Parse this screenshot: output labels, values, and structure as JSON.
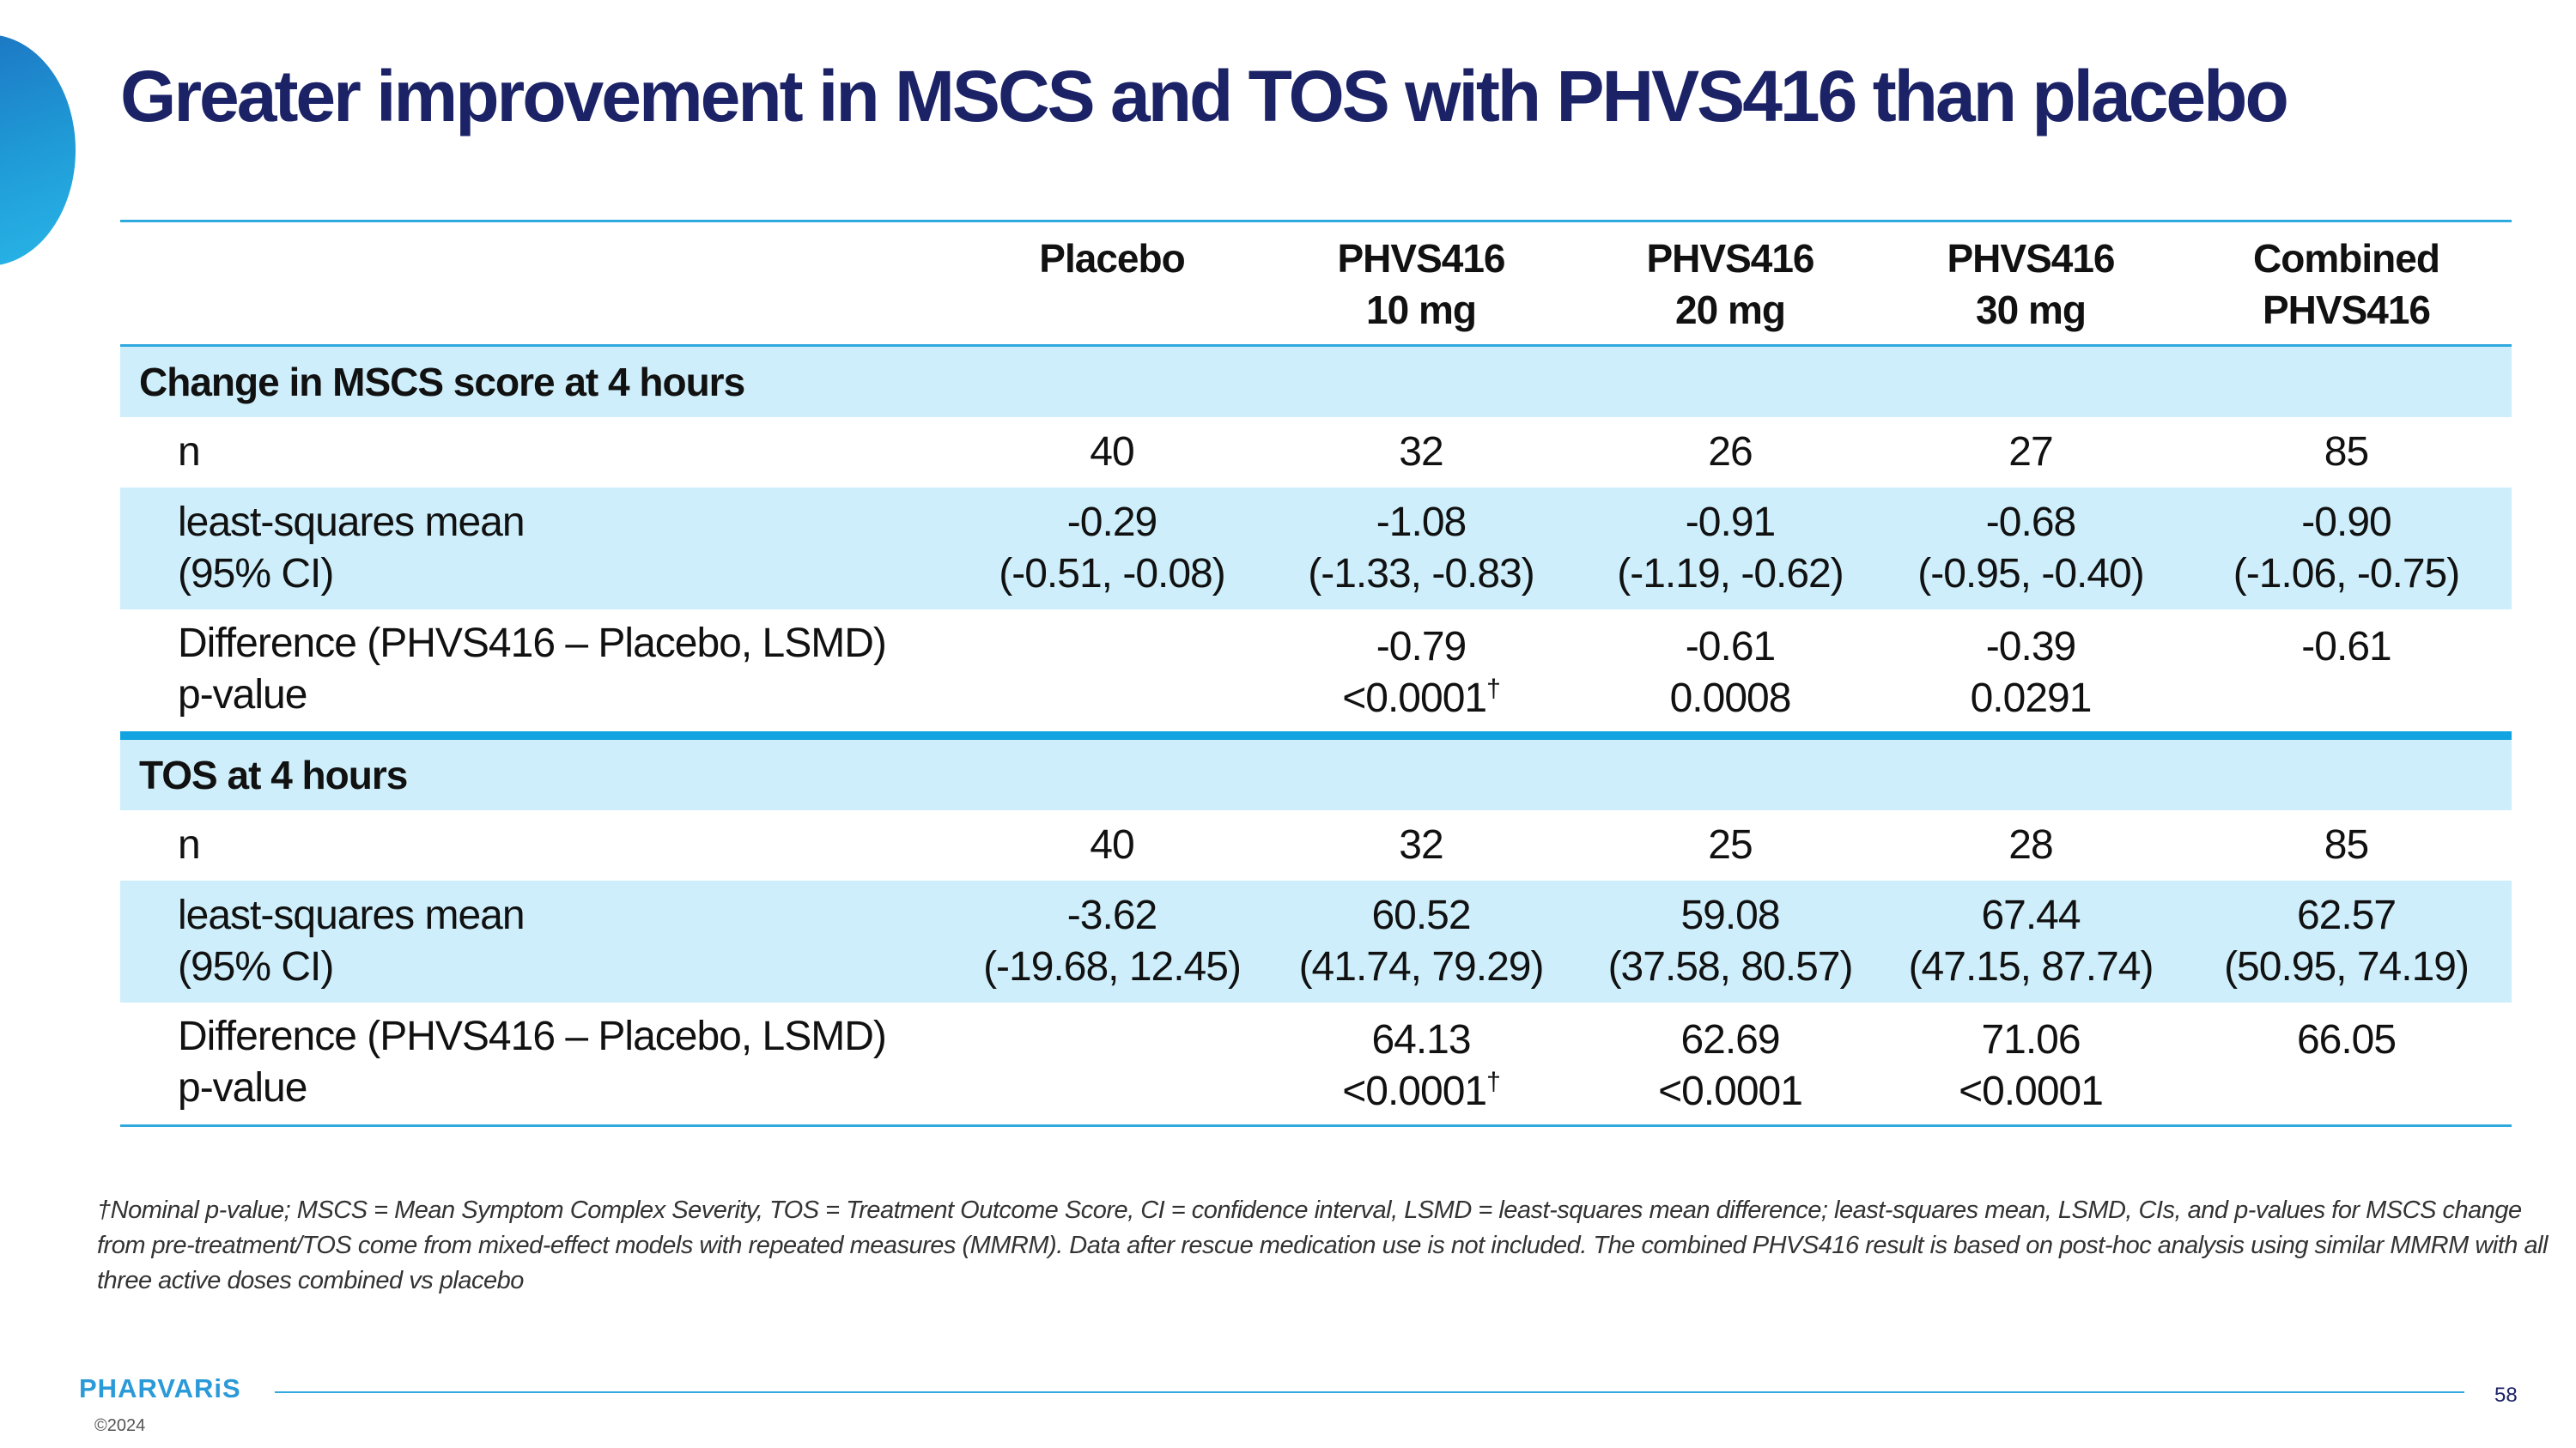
{
  "slide": {
    "title": "Greater improvement in MSCS and TOS with PHVS416 than placebo",
    "page_number": "58",
    "logo_text": "PHARVARiS",
    "copyright": "©2024",
    "footnote": "†Nominal p-value; MSCS = Mean Symptom Complex Severity, TOS = Treatment Outcome Score, CI = confidence interval, LSMD = least-squares mean difference; least-squares mean, LSMD, CIs, and p-values for MSCS change from pre-treatment/TOS come from mixed-effect models with repeated measures (MMRM). Data after rescue medication use is not included. The combined PHVS416 result is based on post-hoc analysis using similar MMRM with all three active doses combined vs placebo"
  },
  "colors": {
    "title": "#1b2266",
    "accent": "#2fa9de",
    "row_shade": "#cdeefa"
  },
  "table": {
    "headers": [
      {
        "line1": "Placebo",
        "line2": ""
      },
      {
        "line1": "PHVS416",
        "line2": "10 mg"
      },
      {
        "line1": "PHVS416",
        "line2": "20 mg"
      },
      {
        "line1": "PHVS416",
        "line2": "30 mg"
      },
      {
        "line1": "Combined",
        "line2": "PHVS416"
      }
    ],
    "sections": [
      {
        "title": "Change in MSCS score at 4 hours",
        "n_label": "n",
        "n_values": [
          "40",
          "32",
          "26",
          "27",
          "85"
        ],
        "lsm_label1": "least-squares mean",
        "lsm_label2": "(95% CI)",
        "lsm_values": [
          {
            "mean": "-0.29",
            "ci": "(-0.51, -0.08)"
          },
          {
            "mean": "-1.08",
            "ci": "(-1.33, -0.83)"
          },
          {
            "mean": "-0.91",
            "ci": "(-1.19, -0.62)"
          },
          {
            "mean": "-0.68",
            "ci": "(-0.95, -0.40)"
          },
          {
            "mean": "-0.90",
            "ci": "(-1.06, -0.75)"
          }
        ],
        "diff_label1": "Difference (PHVS416 – Placebo, LSMD)",
        "diff_label2": "p-value",
        "diff_values": [
          {
            "diff": "",
            "p": ""
          },
          {
            "diff": "-0.79",
            "p": "<0.0001",
            "dagger": "†"
          },
          {
            "diff": "-0.61",
            "p": "0.0008"
          },
          {
            "diff": "-0.39",
            "p": "0.0291"
          },
          {
            "diff": "-0.61",
            "p": ""
          }
        ]
      },
      {
        "title": "TOS at 4 hours",
        "n_label": "n",
        "n_values": [
          "40",
          "32",
          "25",
          "28",
          "85"
        ],
        "lsm_label1": "least-squares mean",
        "lsm_label2": "(95% CI)",
        "lsm_values": [
          {
            "mean": "-3.62",
            "ci": "(-19.68, 12.45)"
          },
          {
            "mean": "60.52",
            "ci": "(41.74, 79.29)"
          },
          {
            "mean": "59.08",
            "ci": "(37.58, 80.57)"
          },
          {
            "mean": "67.44",
            "ci": "(47.15, 87.74)"
          },
          {
            "mean": "62.57",
            "ci": "(50.95, 74.19)"
          }
        ],
        "diff_label1": "Difference (PHVS416 – Placebo, LSMD)",
        "diff_label2": "p-value",
        "diff_values": [
          {
            "diff": "",
            "p": ""
          },
          {
            "diff": "64.13",
            "p": "<0.0001",
            "dagger": "†"
          },
          {
            "diff": "62.69",
            "p": "<0.0001"
          },
          {
            "diff": "71.06",
            "p": "<0.0001"
          },
          {
            "diff": "66.05",
            "p": ""
          }
        ]
      }
    ]
  }
}
